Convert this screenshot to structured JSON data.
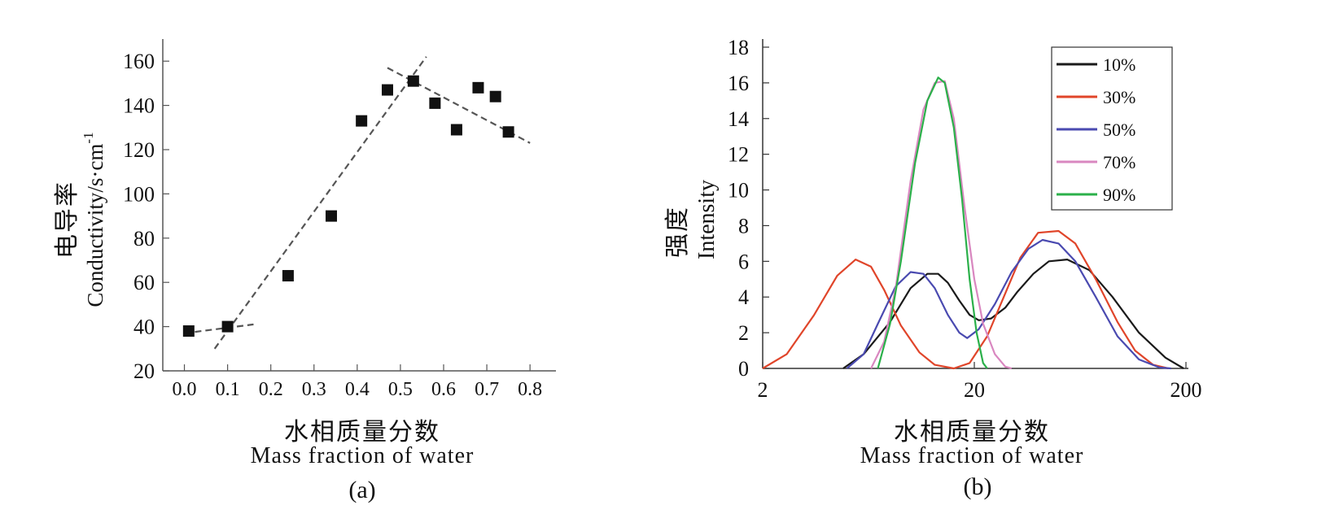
{
  "chart_data": [
    {
      "panel_label": "(a)",
      "type": "scatter",
      "xlabel_zh": "水相质量分数",
      "xlabel": "Mass fraction of water",
      "ylabel_zh": "电导率",
      "ylabel": "Conductivity/s·cm",
      "ylabel_sup": "-1",
      "xlim": [
        -0.05,
        0.86
      ],
      "ylim": [
        20,
        170
      ],
      "xticks": [
        "0.0",
        "0.1",
        "0.2",
        "0.3",
        "0.4",
        "0.5",
        "0.6",
        "0.7",
        "0.8"
      ],
      "yticks": [
        "20",
        "40",
        "60",
        "80",
        "100",
        "120",
        "140",
        "160"
      ],
      "points": [
        {
          "x": 0.01,
          "y": 38
        },
        {
          "x": 0.1,
          "y": 40
        },
        {
          "x": 0.24,
          "y": 63
        },
        {
          "x": 0.34,
          "y": 90
        },
        {
          "x": 0.41,
          "y": 133
        },
        {
          "x": 0.47,
          "y": 147
        },
        {
          "x": 0.53,
          "y": 151
        },
        {
          "x": 0.58,
          "y": 141
        },
        {
          "x": 0.63,
          "y": 129
        },
        {
          "x": 0.68,
          "y": 148
        },
        {
          "x": 0.72,
          "y": 144
        },
        {
          "x": 0.75,
          "y": 128
        }
      ],
      "trend_lines": [
        {
          "x": [
            0.0,
            0.16
          ],
          "y": [
            37,
            41
          ]
        },
        {
          "x": [
            0.07,
            0.56
          ],
          "y": [
            30,
            162
          ]
        },
        {
          "x": [
            0.47,
            0.8
          ],
          "y": [
            157,
            123
          ]
        }
      ]
    },
    {
      "panel_label": "(b)",
      "type": "line",
      "xlabel_zh": "水相质量分数",
      "xlabel": "Mass fraction of water",
      "ylabel_zh": "强度",
      "ylabel": "Intensity",
      "xscale": "log",
      "xlim": [
        2,
        200
      ],
      "ylim": [
        0,
        18
      ],
      "xticks": [
        "2",
        "20",
        "200"
      ],
      "yticks": [
        "0",
        "2",
        "4",
        "6",
        "8",
        "10",
        "12",
        "14",
        "16",
        "18"
      ],
      "legend": {
        "placement": "top-right"
      },
      "series": [
        {
          "name": "10%",
          "color": "#1a1a1a",
          "x": [
            4.8,
            6,
            8,
            10,
            12,
            13.5,
            15,
            17,
            19,
            21,
            24,
            28,
            32,
            38,
            45,
            55,
            70,
            90,
            120,
            160,
            195
          ],
          "y": [
            0,
            0.8,
            2.6,
            4.5,
            5.3,
            5.3,
            4.8,
            3.8,
            3.0,
            2.7,
            2.8,
            3.4,
            4.3,
            5.3,
            6.0,
            6.1,
            5.5,
            4.0,
            2.0,
            0.6,
            0
          ]
        },
        {
          "name": "30%",
          "color": "#e0452a",
          "x": [
            2,
            2.6,
            3.5,
            4.5,
            5.5,
            6.5,
            7.5,
            9,
            11,
            13,
            16,
            19,
            23,
            28,
            33,
            40,
            50,
            60,
            75,
            95,
            115,
            140,
            165
          ],
          "y": [
            0,
            0.8,
            3.0,
            5.2,
            6.1,
            5.7,
            4.4,
            2.4,
            0.9,
            0.2,
            0,
            0.3,
            1.8,
            4.2,
            6.2,
            7.6,
            7.7,
            7.0,
            5.0,
            2.6,
            1.0,
            0.2,
            0
          ]
        },
        {
          "name": "50%",
          "color": "#4a4ab0",
          "x": [
            5,
            6,
            7,
            8.5,
            10,
            11.5,
            13,
            15,
            17,
            18.5,
            21,
            25,
            30,
            36,
            42,
            50,
            60,
            75,
            95,
            120,
            150,
            170
          ],
          "y": [
            0,
            0.8,
            2.5,
            4.6,
            5.4,
            5.3,
            4.5,
            3.0,
            2.0,
            1.7,
            2.2,
            3.6,
            5.4,
            6.7,
            7.2,
            7.0,
            6.0,
            4.0,
            1.8,
            0.5,
            0.05,
            0
          ]
        },
        {
          "name": "70%",
          "color": "#d987c0",
          "x": [
            6.5,
            7.5,
            8.5,
            10,
            11.5,
            13,
            14.5,
            16,
            18,
            20,
            22,
            25,
            28,
            30
          ],
          "y": [
            0,
            1.5,
            4.5,
            10.5,
            14.5,
            16.0,
            16.1,
            14.0,
            9.0,
            5.0,
            2.5,
            0.8,
            0.1,
            0
          ]
        },
        {
          "name": "90%",
          "color": "#2bb04a",
          "x": [
            7,
            8,
            9,
            10.5,
            12,
            13.5,
            14.5,
            16,
            17.5,
            19,
            20.5,
            22,
            23
          ],
          "y": [
            0,
            2.5,
            6.0,
            11.5,
            15.0,
            16.3,
            16.0,
            13.5,
            9.5,
            5.0,
            2.0,
            0.3,
            0
          ]
        }
      ]
    }
  ]
}
